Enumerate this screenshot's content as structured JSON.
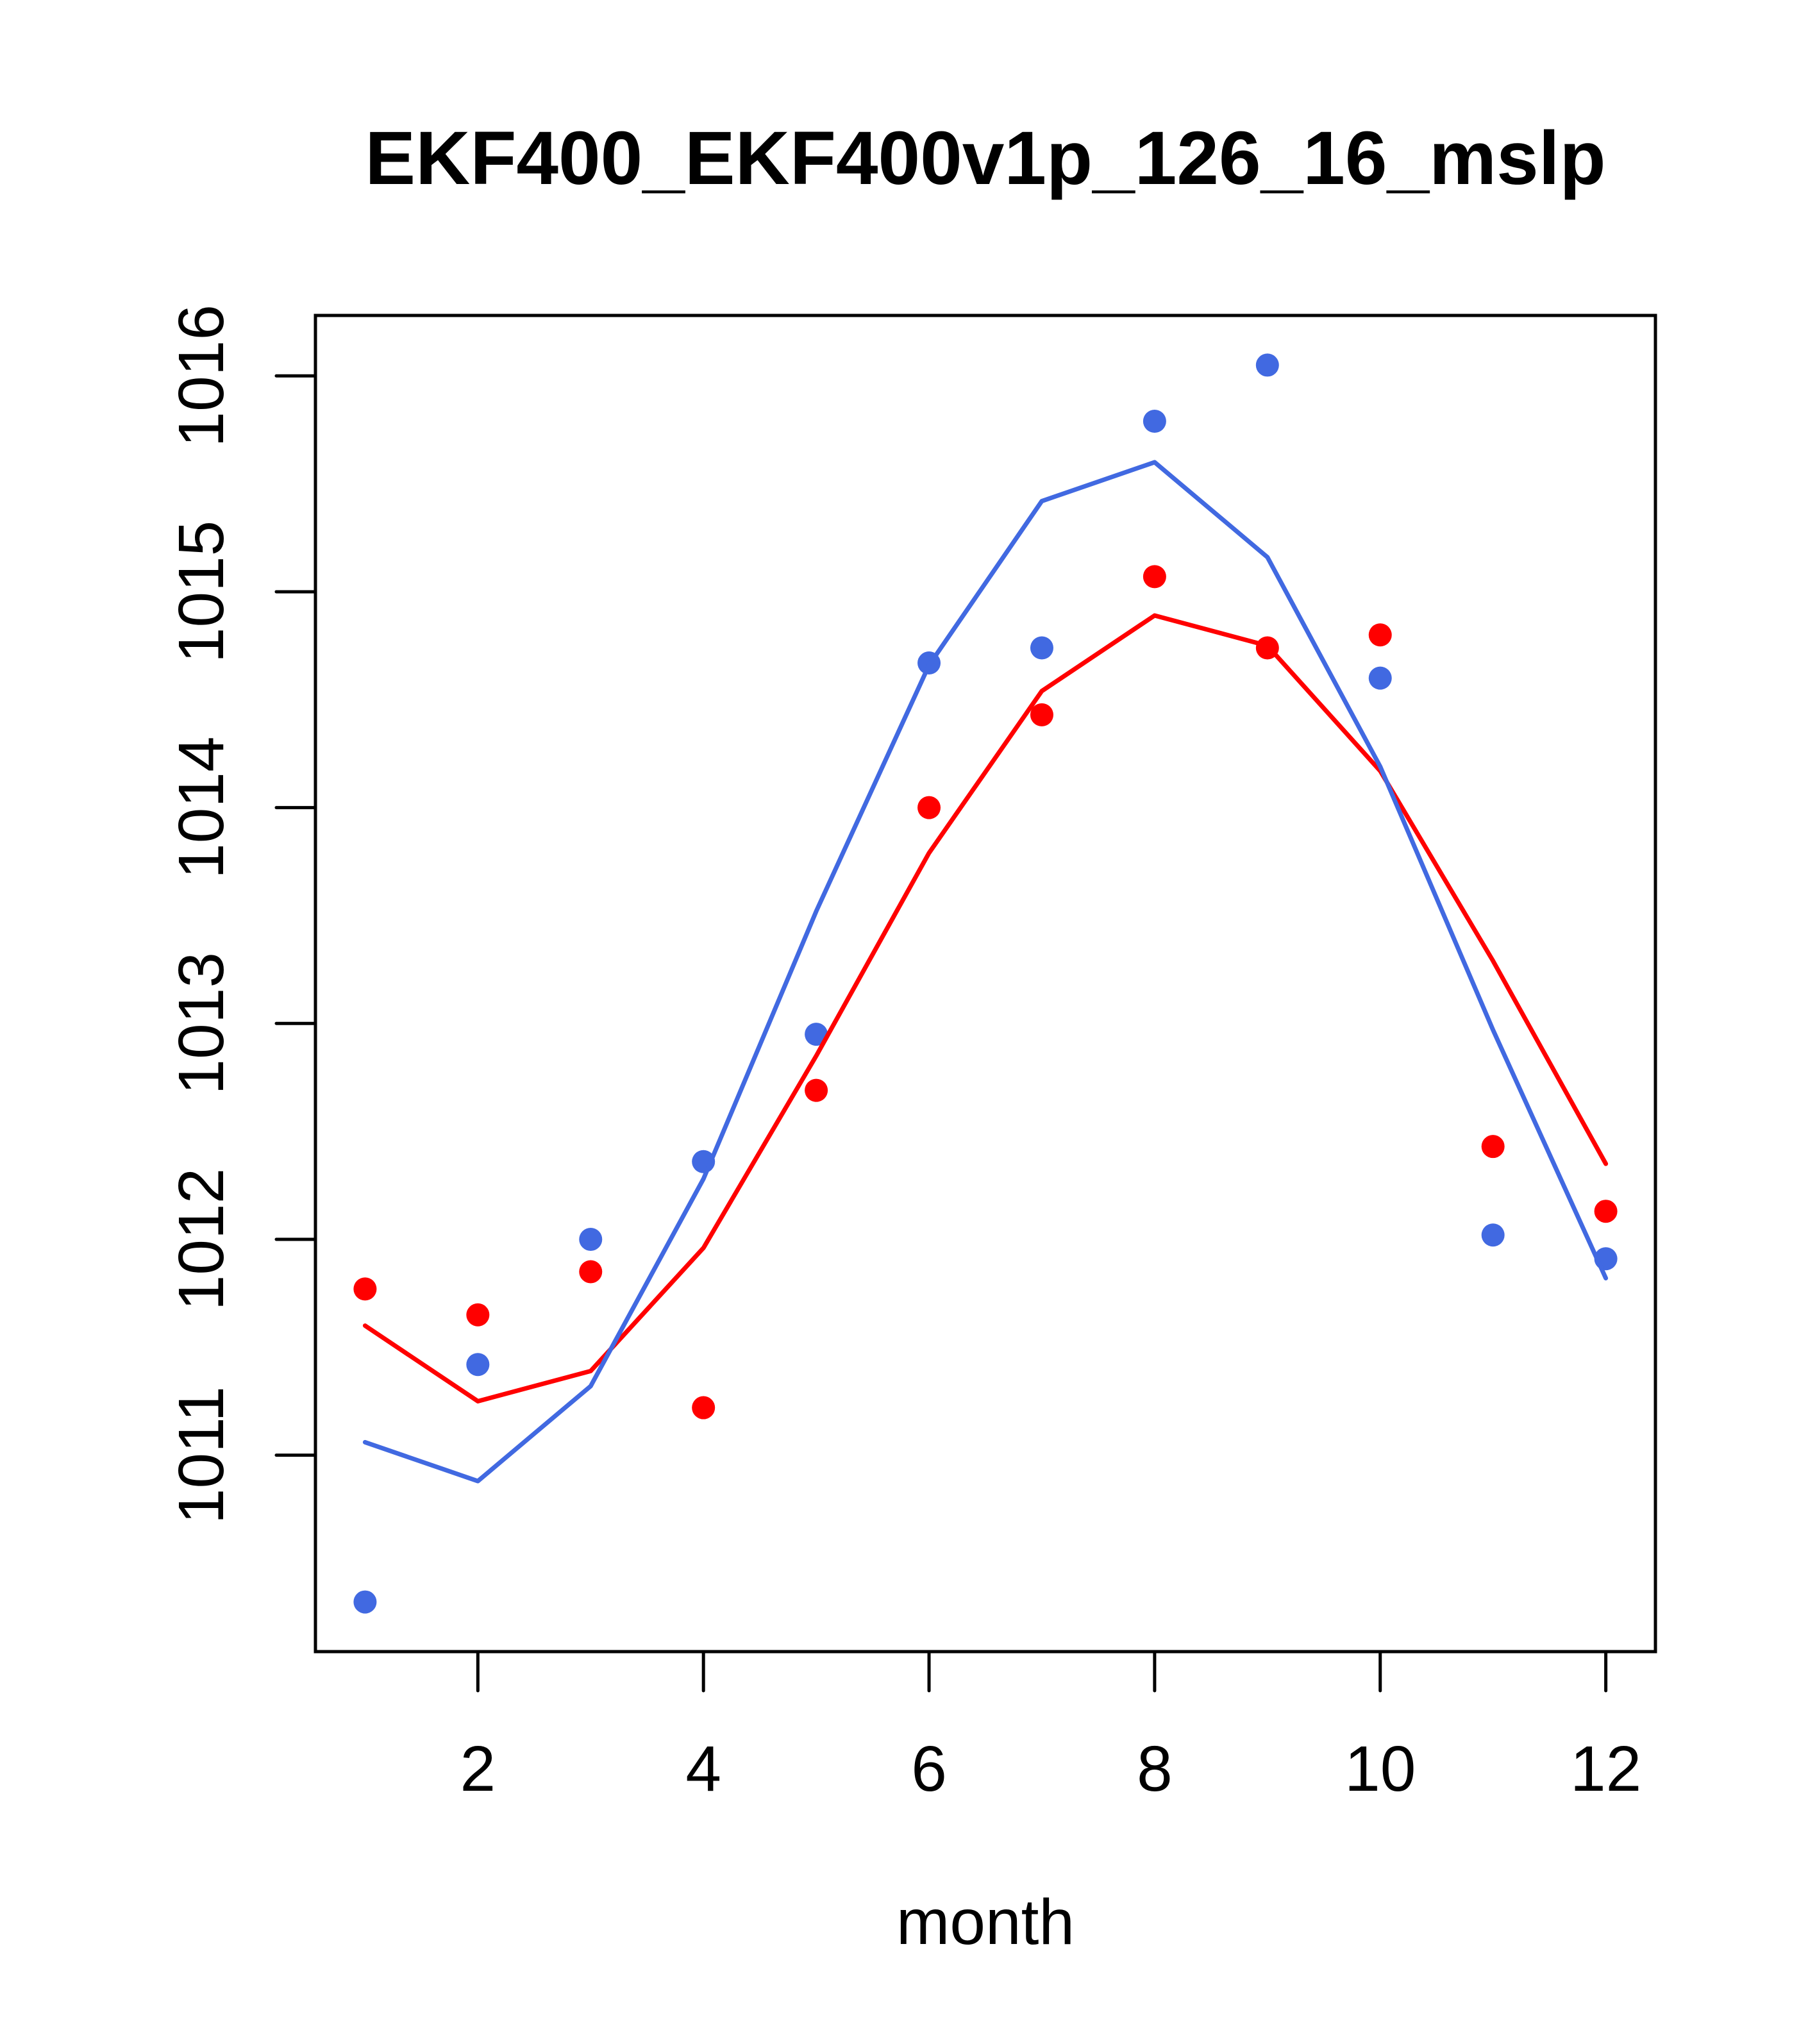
{
  "chart_data": {
    "type": "line",
    "title": "EKF400_EKF400v1p_126_16_mslp",
    "xlabel": "month",
    "ylabel": "",
    "xlim": [
      0.56,
      12.44
    ],
    "ylim": [
      1010.09,
      1016.28
    ],
    "x_ticks": [
      2,
      4,
      6,
      8,
      10,
      12
    ],
    "x_tick_labels": [
      "2",
      "4",
      "6",
      "8",
      "10",
      "12"
    ],
    "y_ticks": [
      1011,
      1012,
      1013,
      1014,
      1015,
      1016
    ],
    "y_tick_labels": [
      "1011",
      "1012",
      "1013",
      "1014",
      "1015",
      "1016"
    ],
    "grid": false,
    "legend": null,
    "x": [
      1,
      2,
      3,
      4,
      5,
      6,
      7,
      8,
      9,
      10,
      11,
      12
    ],
    "series": [
      {
        "name": "red-points",
        "kind": "points",
        "color": "#FF0000",
        "values": [
          1011.77,
          1011.65,
          1011.85,
          1011.22,
          1012.69,
          1014.0,
          1014.43,
          1015.07,
          1014.74,
          1014.8,
          1012.43,
          1012.13
        ]
      },
      {
        "name": "blue-points",
        "kind": "points",
        "color": "#4169E1",
        "values": [
          1010.32,
          1011.42,
          1012.0,
          1012.36,
          1012.95,
          1014.67,
          1014.74,
          1015.79,
          1016.05,
          1014.6,
          1012.02,
          1011.91
        ]
      },
      {
        "name": "red-line",
        "kind": "line",
        "color": "#FF0000",
        "values": [
          1011.6,
          1011.25,
          1011.39,
          1011.96,
          1012.85,
          1013.79,
          1014.54,
          1014.89,
          1014.75,
          1014.17,
          1013.29,
          1012.35
        ]
      },
      {
        "name": "blue-line",
        "kind": "line",
        "color": "#4169E1",
        "values": [
          1011.06,
          1010.88,
          1011.32,
          1012.28,
          1013.52,
          1014.66,
          1015.42,
          1015.6,
          1015.16,
          1014.19,
          1012.97,
          1011.82
        ]
      }
    ]
  }
}
